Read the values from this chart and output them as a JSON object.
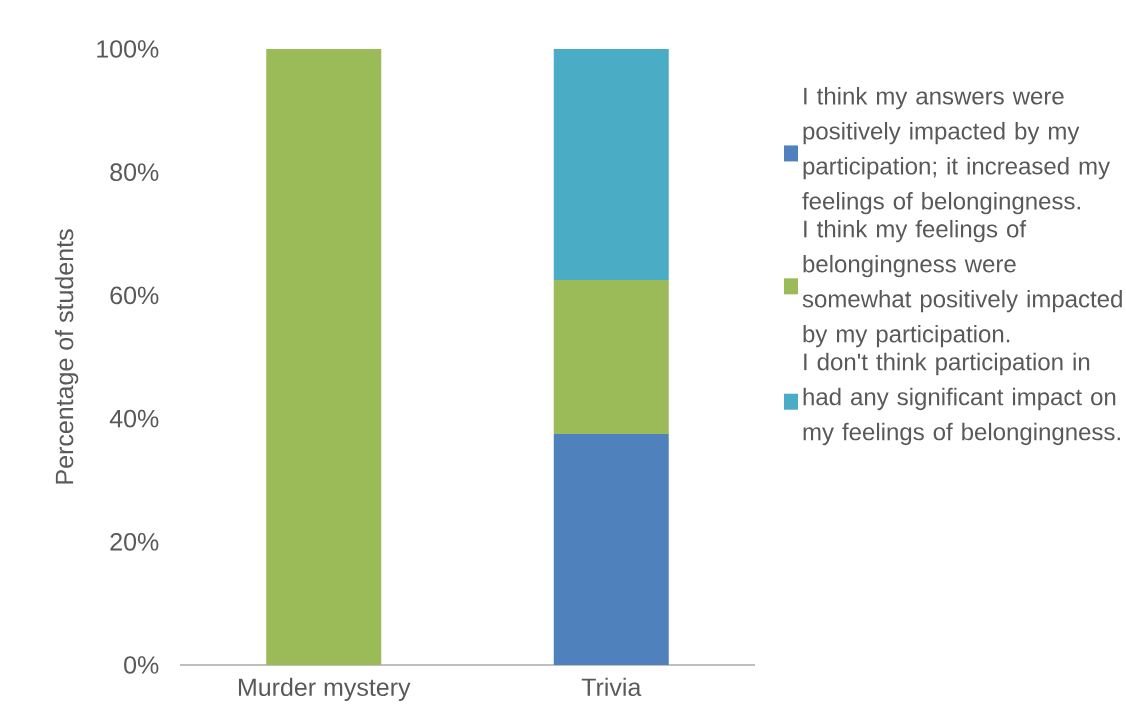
{
  "chart_data": {
    "type": "bar",
    "stacked": true,
    "categories": [
      "Murder mystery",
      "Trivia"
    ],
    "ylabel": "Percentage of students",
    "ylim": [
      0,
      100
    ],
    "yticks": [
      {
        "value": 0,
        "label": "0%"
      },
      {
        "value": 20,
        "label": "20%"
      },
      {
        "value": 40,
        "label": "40%"
      },
      {
        "value": 60,
        "label": "60%"
      },
      {
        "value": 80,
        "label": "80%"
      },
      {
        "value": 100,
        "label": "100%"
      }
    ],
    "series": [
      {
        "name": "I think my answers were positively impacted by my participation; it increased my feelings of belongingness.",
        "color": "#4f81bd",
        "values": [
          0,
          37.5
        ]
      },
      {
        "name": "I think my feelings of belongingness were somewhat positively impacted by my participation.",
        "color": "#9bbb59",
        "values": [
          100,
          25
        ]
      },
      {
        "name": "I don't think participation in had any significant impact on my feelings of belongingness.",
        "color": "#4bacc6",
        "values": [
          0,
          37.5
        ]
      }
    ],
    "legend": "right",
    "grid": false
  }
}
